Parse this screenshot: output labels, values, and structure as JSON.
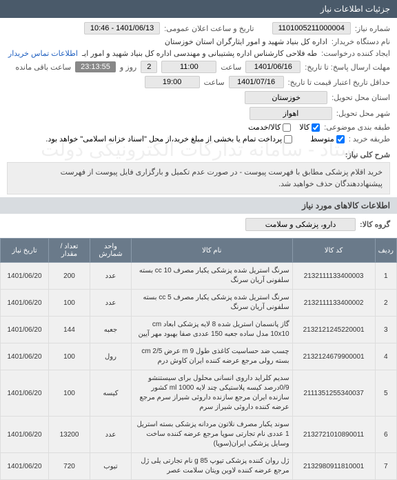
{
  "header": {
    "title": "جزئیات اطلاعات نیاز"
  },
  "fields": {
    "need_no_label": "شماره نیاز:",
    "need_no": "1101005211000004",
    "announce_label": "تاریخ و ساعت اعلان عمومی:",
    "announce_val": "1401/06/13 - 10:46",
    "buyer_org_label": "نام دستگاه خریدار:",
    "buyer_org": "اداره کل بنیاد شهید و امور ایثارگران استان خوزستان",
    "requester_label": "ایجاد کننده درخواست:",
    "requester": "طه فلاحی کارشناس اداره پشتیبانی و مهندسی اداره کل بنیاد شهید و امور ایـ",
    "contact_link": "اطلاعات تماس خریدار",
    "deadline_label": "مهلت ارسال پاسخ: تا تاریخ:",
    "deadline_date": "1401/06/16",
    "time_label": "ساعت",
    "deadline_time": "11:00",
    "remain_label": "روز و",
    "remain_time": "23:13:55",
    "remain_suffix": "ساعت باقی مانده",
    "remain_days": "2",
    "validity_label": "حداقل تاریخ اعتبار قیمت تا تاریخ:",
    "validity_date": "1401/07/16",
    "validity_time": "19:00",
    "province_label": "استان محل تحویل:",
    "province": "خوزستان",
    "city_label": "شهر محل تحویل:",
    "city": "اهواز",
    "category_label": "طبقه بندی موضوعی:",
    "goods_label": "کالا",
    "service_label": "کالا/خدمت",
    "buy_method_label": "طریقه خرید :",
    "mid_label": "متوسط",
    "pay_note": "پرداخت تمام یا بخشی از مبلغ خرید،از محل \"اسناد خزانه اسلامی\" خواهد بود.",
    "need_title_label": "شرح کلی نیاز:",
    "need_title": "خرید اقلام پزشکی مطابق با فهرست پیوست - در صورت عدم تکمیل و بارگزاری فایل پیوست از فهرست پیشنهاددهندگان حذف خواهید شد."
  },
  "items_header": "اطلاعات کالاهای مورد نیاز",
  "group_label": "گروه کالا:",
  "group_val": "دارو، پزشکی و سلامت",
  "table": {
    "cols": [
      "ردیف",
      "کد کالا",
      "نام کالا",
      "واحد شمارش",
      "تعداد / مقدار",
      "تاریخ نیاز"
    ],
    "rows": [
      {
        "idx": "1",
        "code": "2132111133400003",
        "name": "سرنگ استریل شده پزشکی یکبار مصرف cc 10 بسته سلفونی آریان سرنگ",
        "unit": "عدد",
        "qty": "200",
        "date": "1401/06/20"
      },
      {
        "idx": "2",
        "code": "2132111133400002",
        "name": "سرنگ استریل شده پزشکی یکبار مصرف cc 5 بسته سلفونی آریان سرنگ",
        "unit": "عدد",
        "qty": "100",
        "date": "1401/06/20"
      },
      {
        "idx": "3",
        "code": "2132121245220001",
        "name": "گاز پانسمان استریل شده 8 لایه پزشکی ابعاد cm 10x10 مدل ساده جعبه 150 عددی صفا بهبود مهر آیین",
        "unit": "جعبه",
        "qty": "144",
        "date": "1401/06/20"
      },
      {
        "idx": "4",
        "code": "2132124679900001",
        "name": "چسب ضد حساسیت کاغذی طول m 9 عرض cm 2/5 بسته رولی مرجع عرضه کننده ایران کاوش درم",
        "unit": "رول",
        "qty": "100",
        "date": "1401/06/20"
      },
      {
        "idx": "5",
        "code": "2111351255340037",
        "name": "سدیم کلراید داروی انسانی محلول برای سیستنشو 0/9درصد کیسه پلاستیکی چند لایه ml 1000 کشور سازنده ایران مرجع سازنده داروئی شیراز سرم مرجع عرضه کننده داروئی شیراز سرم",
        "unit": "کیسه",
        "qty": "100",
        "date": "1401/06/20"
      },
      {
        "idx": "6",
        "code": "2132721010890011",
        "name": "سوند یکبار مصرف نلاتون مردانه پزشکی بسته استریل 1 عددی نام تجارتی سوپا مرجع عرضه کننده ساخت وسایل پزشکی ایران(سوپا)",
        "unit": "عدد",
        "qty": "13200",
        "date": "1401/06/20"
      },
      {
        "idx": "7",
        "code": "2132980911810001",
        "name": "ژل روان کننده پزشکی تیوپ g 85 نام تجارتی یلی ژل مرجع عرضه کننده لاوین ویتان سلامت عصر",
        "unit": "تيوب",
        "qty": "720",
        "date": "1401/06/20"
      }
    ]
  },
  "colors": {
    "header_bg": "#4a5a6a",
    "th_bg": "#6a7a8a",
    "sub_bg": "#d8dce0"
  }
}
